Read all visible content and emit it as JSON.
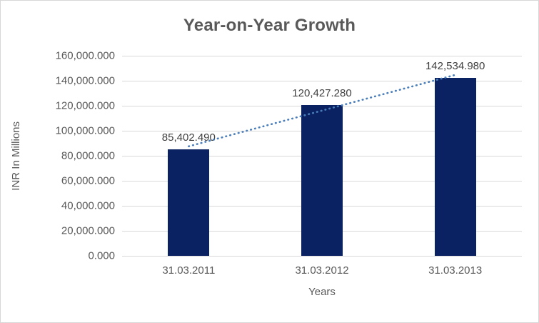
{
  "chart_data": {
    "type": "bar",
    "title": "Year-on-Year Growth",
    "xlabel": "Years",
    "ylabel": "INR In Millions",
    "categories": [
      "31.03.2011",
      "31.03.2012",
      "31.03.2013"
    ],
    "values": [
      85402.49,
      120427.28,
      142534.98
    ],
    "value_labels": [
      "85,402.490",
      "120,427.280",
      "142,534.980"
    ],
    "ylim": [
      0,
      160000
    ],
    "yticks": [
      0,
      20000,
      40000,
      60000,
      80000,
      100000,
      120000,
      140000,
      160000
    ],
    "ytick_labels": [
      "0.000",
      "20,000.000",
      "40,000.000",
      "60,000.000",
      "80,000.000",
      "100,000.000",
      "120,000.000",
      "140,000.000",
      "160,000.000"
    ],
    "grid": true,
    "legend": false,
    "trendline": {
      "type": "linear",
      "style": "dotted"
    },
    "colors": {
      "bar": "#0a2262",
      "trendline": "#4a7ebb",
      "title_text": "#595959",
      "axis_text": "#595959",
      "data_label_text": "#404040",
      "gridline": "#d9d9d9",
      "chart_border": "#d7d7d7",
      "background": "#ffffff"
    }
  }
}
